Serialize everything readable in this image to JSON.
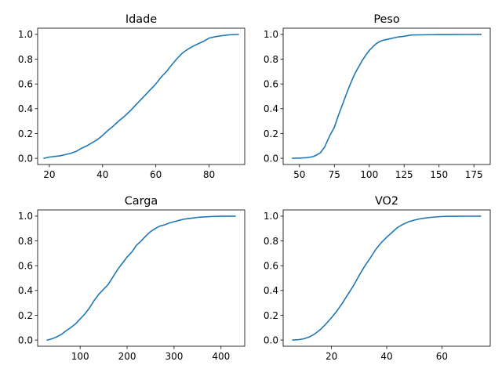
{
  "chart_data": [
    {
      "type": "line",
      "title": "Idade",
      "xlabel": "",
      "ylabel": "",
      "xlim": [
        15.6,
        93.4
      ],
      "ylim": [
        -0.05,
        1.05
      ],
      "xticks": [
        20,
        40,
        60,
        80
      ],
      "yticks": [
        0.0,
        0.2,
        0.4,
        0.6,
        0.8,
        1.0
      ],
      "xtick_labels": [
        "20",
        "40",
        "60",
        "80"
      ],
      "ytick_labels": [
        "0.0",
        "0.2",
        "0.4",
        "0.6",
        "0.8",
        "1.0"
      ],
      "color": "#1f77b4",
      "grid": false,
      "x": [
        18,
        20,
        22,
        24,
        26,
        28,
        30,
        32,
        34,
        36,
        38,
        40,
        42,
        44,
        46,
        48,
        50,
        52,
        54,
        56,
        58,
        60,
        62,
        64,
        66,
        68,
        70,
        72,
        74,
        76,
        78,
        80,
        82,
        84,
        86,
        88,
        91
      ],
      "y": [
        0.0,
        0.01,
        0.015,
        0.02,
        0.03,
        0.04,
        0.055,
        0.08,
        0.1,
        0.125,
        0.15,
        0.185,
        0.225,
        0.26,
        0.3,
        0.335,
        0.375,
        0.42,
        0.465,
        0.51,
        0.555,
        0.6,
        0.655,
        0.7,
        0.755,
        0.805,
        0.85,
        0.88,
        0.905,
        0.925,
        0.945,
        0.97,
        0.98,
        0.987,
        0.993,
        0.997,
        1.0
      ]
    },
    {
      "type": "line",
      "title": "Peso",
      "xlabel": "",
      "ylabel": "",
      "xlim": [
        38.3,
        186.7
      ],
      "ylim": [
        -0.05,
        1.05
      ],
      "xticks": [
        50,
        75,
        100,
        125,
        150,
        175
      ],
      "yticks": [
        0.0,
        0.2,
        0.4,
        0.6,
        0.8,
        1.0
      ],
      "xtick_labels": [
        "50",
        "75",
        "100",
        "125",
        "150",
        "175"
      ],
      "ytick_labels": [
        "0.0",
        "0.2",
        "0.4",
        "0.6",
        "0.8",
        "1.0"
      ],
      "color": "#1f77b4",
      "grid": false,
      "x": [
        45,
        50,
        55,
        58,
        60,
        62,
        65,
        68,
        70,
        72,
        75,
        78,
        80,
        82,
        85,
        88,
        90,
        92,
        95,
        98,
        100,
        103,
        105,
        108,
        110,
        115,
        120,
        125,
        130,
        140,
        150,
        160,
        170,
        180
      ],
      "y": [
        0.0,
        0.002,
        0.005,
        0.01,
        0.015,
        0.025,
        0.045,
        0.09,
        0.14,
        0.19,
        0.25,
        0.35,
        0.41,
        0.47,
        0.56,
        0.64,
        0.69,
        0.73,
        0.79,
        0.84,
        0.87,
        0.905,
        0.925,
        0.945,
        0.953,
        0.965,
        0.978,
        0.985,
        0.995,
        0.997,
        0.998,
        0.999,
        0.9995,
        1.0
      ]
    },
    {
      "type": "line",
      "title": "Carga",
      "xlabel": "",
      "ylabel": "",
      "xlim": [
        9.5,
        450.5
      ],
      "ylim": [
        -0.05,
        1.05
      ],
      "xticks": [
        100,
        200,
        300,
        400
      ],
      "yticks": [
        0.0,
        0.2,
        0.4,
        0.6,
        0.8,
        1.0
      ],
      "xtick_labels": [
        "100",
        "200",
        "300",
        "400"
      ],
      "ytick_labels": [
        "0.0",
        "0.2",
        "0.4",
        "0.6",
        "0.8",
        "1.0"
      ],
      "color": "#1f77b4",
      "grid": false,
      "x": [
        30,
        40,
        50,
        60,
        70,
        80,
        90,
        100,
        110,
        120,
        130,
        140,
        150,
        160,
        170,
        180,
        190,
        200,
        210,
        220,
        230,
        240,
        250,
        260,
        270,
        280,
        290,
        300,
        310,
        320,
        330,
        340,
        350,
        360,
        380,
        400,
        430
      ],
      "y": [
        0.0,
        0.01,
        0.025,
        0.045,
        0.075,
        0.1,
        0.13,
        0.17,
        0.21,
        0.26,
        0.32,
        0.37,
        0.41,
        0.45,
        0.51,
        0.57,
        0.62,
        0.67,
        0.71,
        0.765,
        0.8,
        0.84,
        0.875,
        0.9,
        0.92,
        0.93,
        0.945,
        0.955,
        0.965,
        0.975,
        0.98,
        0.985,
        0.99,
        0.993,
        0.997,
        0.999,
        1.0
      ]
    },
    {
      "type": "line",
      "title": "VO2",
      "xlabel": "",
      "ylabel": "",
      "xlim": [
        2.5,
        77.5
      ],
      "ylim": [
        -0.05,
        1.05
      ],
      "xticks": [
        20,
        40,
        60
      ],
      "yticks": [
        0.0,
        0.2,
        0.4,
        0.6,
        0.8,
        1.0
      ],
      "xtick_labels": [
        "20",
        "40",
        "60"
      ],
      "ytick_labels": [
        "0.0",
        "0.2",
        "0.4",
        "0.6",
        "0.8",
        "1.0"
      ],
      "color": "#1f77b4",
      "grid": false,
      "x": [
        6,
        8,
        10,
        12,
        14,
        16,
        18,
        20,
        22,
        24,
        26,
        28,
        30,
        32,
        34,
        36,
        38,
        40,
        42,
        44,
        46,
        48,
        50,
        52,
        54,
        56,
        58,
        60,
        62,
        66,
        70,
        74
      ],
      "y": [
        0.0,
        0.003,
        0.01,
        0.025,
        0.05,
        0.085,
        0.13,
        0.18,
        0.235,
        0.3,
        0.37,
        0.44,
        0.52,
        0.595,
        0.66,
        0.73,
        0.785,
        0.83,
        0.87,
        0.91,
        0.935,
        0.955,
        0.968,
        0.978,
        0.985,
        0.99,
        0.994,
        0.997,
        0.998,
        0.999,
        0.9995,
        1.0
      ]
    }
  ]
}
